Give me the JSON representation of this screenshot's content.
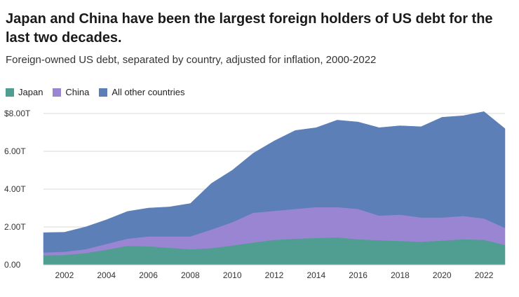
{
  "title": "Japan and China have been the largest foreign holders of US debt for the last two decades.",
  "subtitle": "Foreign-owned US debt, separated by country, adjusted for inflation, 2000-2022",
  "chart_data": {
    "type": "area",
    "stacked": true,
    "x": [
      2001,
      2002,
      2003,
      2004,
      2005,
      2006,
      2007,
      2008,
      2009,
      2010,
      2011,
      2012,
      2013,
      2014,
      2015,
      2016,
      2017,
      2018,
      2019,
      2020,
      2021,
      2022,
      2023
    ],
    "series": [
      {
        "name": "Japan",
        "color": "#4f9e91",
        "values": [
          0.5,
          0.52,
          0.62,
          0.8,
          1.0,
          0.98,
          0.9,
          0.82,
          0.88,
          1.02,
          1.18,
          1.32,
          1.38,
          1.42,
          1.45,
          1.35,
          1.3,
          1.26,
          1.22,
          1.28,
          1.35,
          1.32,
          1.05
        ]
      },
      {
        "name": "China",
        "color": "#9a85d3",
        "values": [
          0.15,
          0.17,
          0.2,
          0.3,
          0.38,
          0.52,
          0.6,
          0.68,
          0.98,
          1.23,
          1.57,
          1.53,
          1.57,
          1.63,
          1.6,
          1.6,
          1.3,
          1.39,
          1.28,
          1.22,
          1.23,
          1.13,
          0.9
        ]
      },
      {
        "name": "All other countries",
        "color": "#5c7fb7",
        "values": [
          1.05,
          1.03,
          1.18,
          1.28,
          1.44,
          1.5,
          1.56,
          1.74,
          2.44,
          2.75,
          3.15,
          3.7,
          4.15,
          4.2,
          4.6,
          4.6,
          4.65,
          4.7,
          4.8,
          5.3,
          5.3,
          5.65,
          5.25
        ]
      }
    ],
    "ylim": [
      0,
      8.0
    ],
    "yticks": [
      0,
      2,
      4,
      6,
      8
    ],
    "yticklabels": [
      "0.00",
      "2.00T",
      "4.00T",
      "6.00T",
      "$8.00T"
    ],
    "xticks": [
      2002,
      2004,
      2006,
      2008,
      2010,
      2012,
      2014,
      2016,
      2018,
      2020,
      2022
    ],
    "xticklabels": [
      "2002",
      "2004",
      "2006",
      "2008",
      "2010",
      "2012",
      "2014",
      "2016",
      "2018",
      "2020",
      "2022"
    ],
    "xlim": [
      2001,
      2023
    ],
    "grid": true,
    "legend_position": "top-left"
  }
}
